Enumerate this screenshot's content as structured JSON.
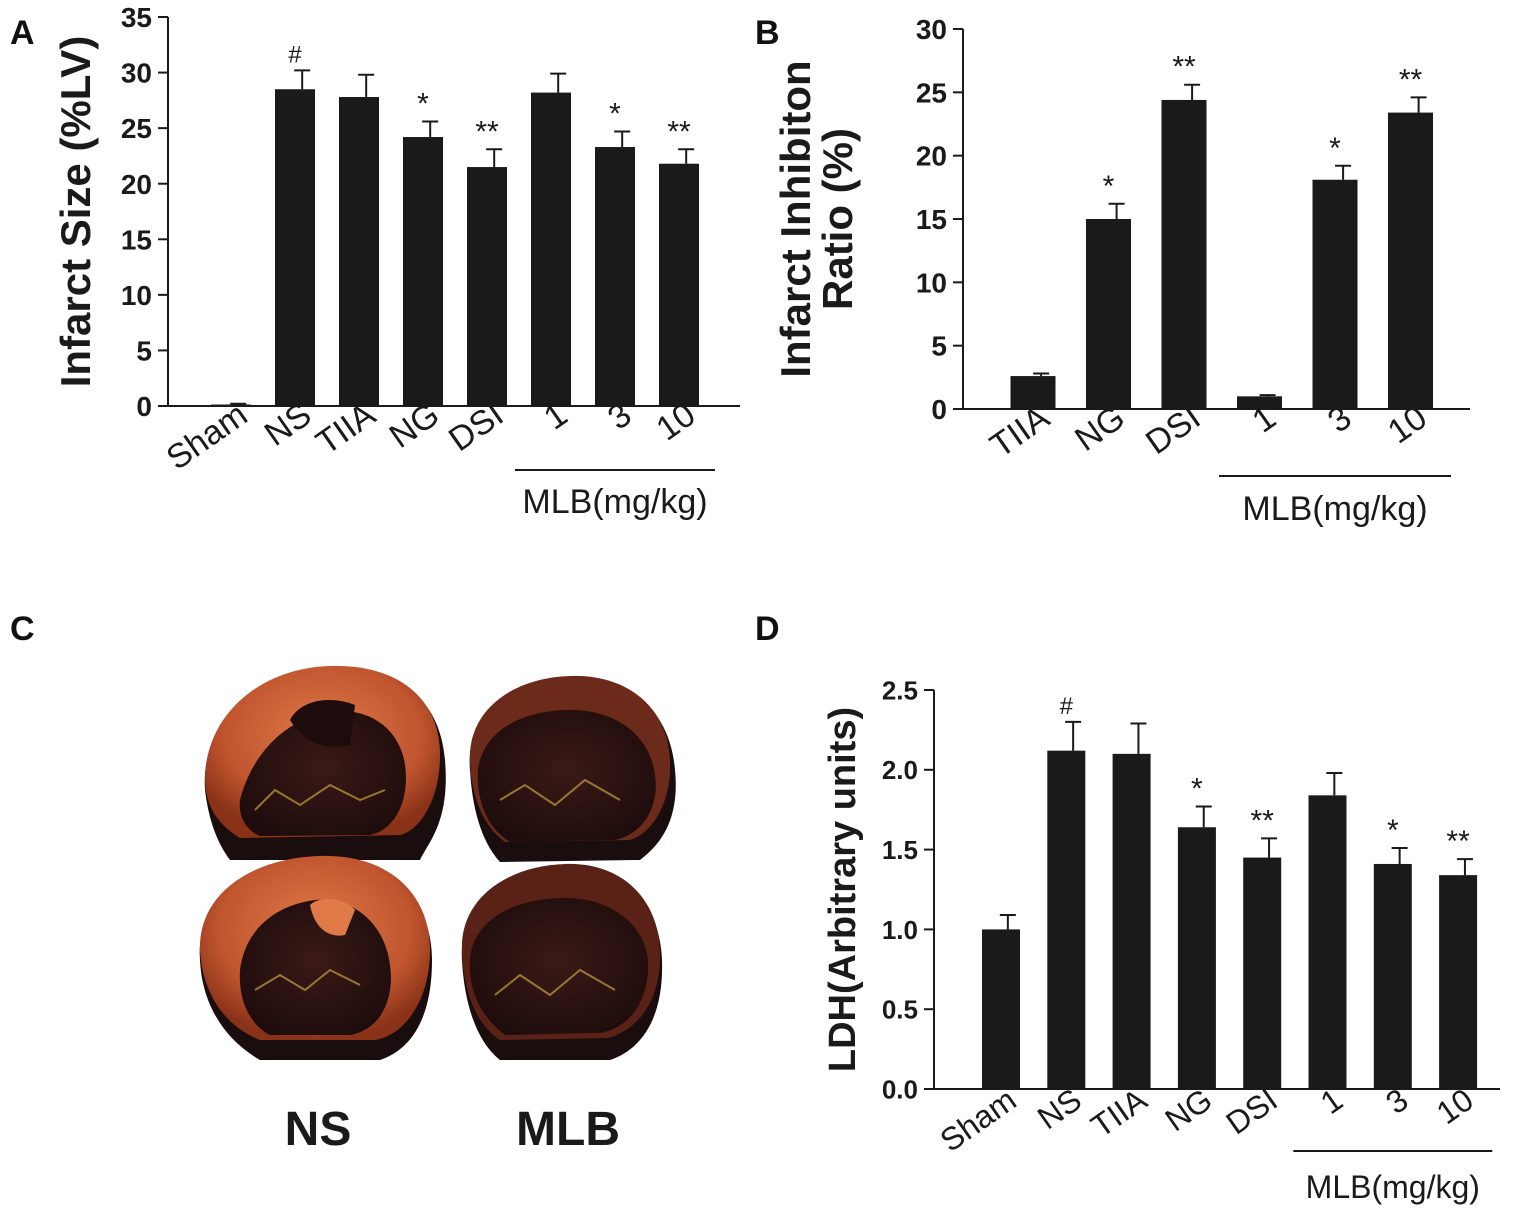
{
  "panels": {
    "A": "A",
    "B": "B",
    "C": "C",
    "D": "D"
  },
  "photo": {
    "labels": [
      "NS",
      "MLB"
    ],
    "colors": {
      "tissue": "#c0552e",
      "infarct": "#2a1212",
      "shadow": "#1a0d0d"
    }
  },
  "chart_data": [
    {
      "id": "A",
      "type": "bar",
      "ylabel": "Infarct Size (%LV)",
      "ylim": [
        0,
        35
      ],
      "yticks": [
        "0",
        "5",
        "10",
        "15",
        "20",
        "25",
        "30",
        "35"
      ],
      "categories": [
        "Sham",
        "NS",
        "TIIA",
        "NG",
        "DSI",
        "1",
        "3",
        "10"
      ],
      "values": [
        0.1,
        28.5,
        27.8,
        24.2,
        21.5,
        28.2,
        23.3,
        21.8
      ],
      "errors": [
        0.1,
        1.7,
        2.0,
        1.4,
        1.6,
        1.7,
        1.4,
        1.3
      ],
      "annotations": [
        "",
        "#",
        "",
        "*",
        "**",
        "",
        "*",
        "**"
      ],
      "group_label": "MLB(mg/kg)",
      "group_start": 5,
      "bar_color": "#1a1a1a"
    },
    {
      "id": "B",
      "type": "bar",
      "ylabel": "Infarct Inhibiton Ratio (%)",
      "ylim": [
        0,
        30
      ],
      "yticks": [
        "0",
        "5",
        "10",
        "15",
        "20",
        "25",
        "30"
      ],
      "categories": [
        "TIIA",
        "NG",
        "DSI",
        "1",
        "3",
        "10"
      ],
      "values": [
        2.6,
        15.0,
        24.4,
        1.0,
        18.1,
        23.4
      ],
      "errors": [
        0.2,
        1.2,
        1.2,
        0.1,
        1.1,
        1.2
      ],
      "annotations": [
        "",
        "*",
        "**",
        "",
        "*",
        "**"
      ],
      "group_label": "MLB(mg/kg)",
      "group_start": 3,
      "bar_color": "#1a1a1a"
    },
    {
      "id": "D",
      "type": "bar",
      "ylabel": "LDH(Arbitrary units)",
      "ylim": [
        0,
        2.5
      ],
      "yticks": [
        "0.0",
        "0.5",
        "1.0",
        "1.5",
        "2.0",
        "2.5"
      ],
      "categories": [
        "Sham",
        "NS",
        "TIIA",
        "NG",
        "DSI",
        "1",
        "3",
        "10"
      ],
      "values": [
        1.0,
        2.12,
        2.1,
        1.64,
        1.45,
        1.84,
        1.41,
        1.34
      ],
      "errors": [
        0.09,
        0.18,
        0.19,
        0.13,
        0.12,
        0.14,
        0.1,
        0.1
      ],
      "annotations": [
        "",
        "#",
        "",
        "*",
        "**",
        "",
        "*",
        "**"
      ],
      "group_label": "MLB(mg/kg)",
      "group_start": 5,
      "bar_color": "#1a1a1a"
    }
  ]
}
